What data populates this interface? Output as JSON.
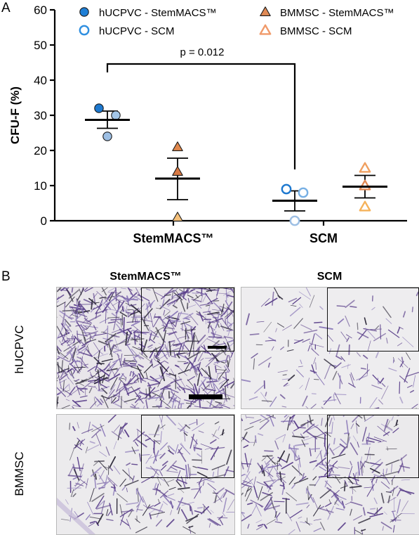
{
  "panels": {
    "a": "A",
    "b": "B"
  },
  "chart_data": {
    "type": "scatter",
    "ylabel": "CFU-F (%)",
    "ylim": [
      0,
      60
    ],
    "yticks": [
      0,
      10,
      20,
      30,
      40,
      50,
      60
    ],
    "groups": [
      "StemMACS™",
      "SCM"
    ],
    "legend": [
      {
        "name": "hUCPVC - StemMACS™",
        "marker": "circle",
        "filled": true,
        "color": "#1f7fd6"
      },
      {
        "name": "hUCPVC - SCM",
        "marker": "circle",
        "filled": false,
        "color": "#2f8fe0"
      },
      {
        "name": "BMMSC - StemMACS™",
        "marker": "triangle",
        "filled": true,
        "color": "#e08a55"
      },
      {
        "name": "BMMSC - SCM",
        "marker": "triangle",
        "filled": false,
        "color": "#f09a6a"
      }
    ],
    "series": [
      {
        "group": "StemMACS™",
        "cell": "hUCPVC",
        "points": [
          32,
          30,
          24
        ],
        "mean": 28.7,
        "sem_low": 26.3,
        "sem_high": 31.2
      },
      {
        "group": "StemMACS™",
        "cell": "BMMSC",
        "points": [
          21,
          14,
          1
        ],
        "mean": 12.0,
        "sem_low": 6.0,
        "sem_high": 17.8
      },
      {
        "group": "SCM",
        "cell": "hUCPVC",
        "points": [
          9,
          8,
          0
        ],
        "mean": 5.7,
        "sem_low": 2.8,
        "sem_high": 8.5
      },
      {
        "group": "SCM",
        "cell": "BMMSC",
        "points": [
          15,
          10,
          4
        ],
        "mean": 9.7,
        "sem_low": 6.5,
        "sem_high": 12.9
      }
    ],
    "annotation": "p = 0.012"
  },
  "images": {
    "columns": [
      "StemMACS™",
      "SCM"
    ],
    "rows": [
      "hUCPVC",
      "BMMSC"
    ]
  }
}
